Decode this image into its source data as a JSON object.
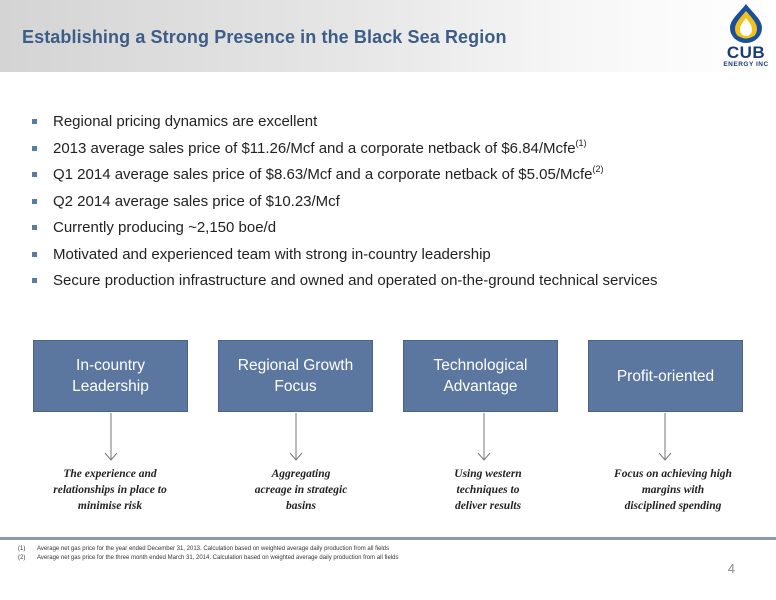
{
  "header": {
    "title": "Establishing a Strong Presence in the Black Sea Region",
    "logo_name": "CUB",
    "logo_sub": "ENERGY INC",
    "accent_color": "#3c5d86"
  },
  "bullets": [
    {
      "text": "Regional pricing dynamics are excellent",
      "sup": ""
    },
    {
      "text": "2013 average sales price of $11.26/Mcf and a corporate netback of $6.84/Mcfe",
      "sup": "(1)"
    },
    {
      "text": "Q1 2014 average sales price of $8.63/Mcf and a corporate netback of $5.05/Mcfe",
      "sup": "(2)"
    },
    {
      "text": "Q2 2014 average sales price of $10.23/Mcf",
      "sup": ""
    },
    {
      "text": "Currently producing ~2,150 boe/d",
      "sup": ""
    },
    {
      "text": "Motivated and experienced team with strong in-country leadership",
      "sup": ""
    },
    {
      "text": "Secure production infrastructure and owned and operated on-the-ground technical services",
      "sup": ""
    }
  ],
  "pillars": [
    {
      "line1": "In-country",
      "line2": "Leadership",
      "desc": [
        "The experience and",
        "relationships in place to",
        "minimise risk"
      ]
    },
    {
      "line1": "Regional Growth",
      "line2": "Focus",
      "desc": [
        "Aggregating",
        "acreage in strategic",
        "basins"
      ]
    },
    {
      "line1": "Technological",
      "line2": "Advantage",
      "desc": [
        "Using western",
        "techniques to",
        "deliver results"
      ]
    },
    {
      "line1": "Profit-oriented",
      "line2": "",
      "desc": [
        "Focus on achieving high",
        "margins with",
        "disciplined spending"
      ]
    }
  ],
  "footnotes": [
    {
      "mark": "(1)",
      "text": "Average net gas price for the year ended December 31, 2013. Calculation based on weighted average daily production from all fields"
    },
    {
      "mark": "(2)",
      "text": "Average net gas price for the three month ended March 31, 2014. Calculation based on weighted average daily production from all fields"
    }
  ],
  "page_number": "4",
  "colors": {
    "pillar_fill": "#5b77a0",
    "bullet_square": "#5a7a9e",
    "footer_line": "#8f9ab0"
  }
}
